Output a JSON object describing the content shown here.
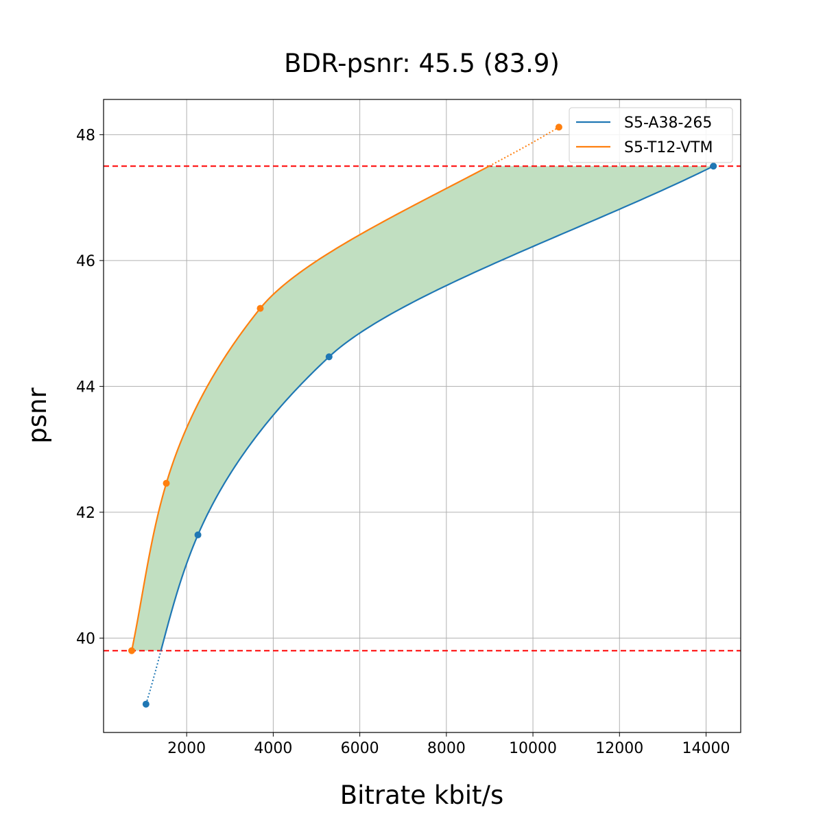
{
  "chart_data": {
    "type": "line",
    "title": "BDR-psnr: 45.5 (83.9)",
    "xlabel": "Bitrate kbit/s",
    "ylabel": "psnr",
    "xlim": [
      80,
      14800
    ],
    "ylim": [
      38.5,
      48.56
    ],
    "xticks": [
      2000,
      4000,
      6000,
      8000,
      10000,
      12000,
      14000
    ],
    "yticks": [
      40,
      42,
      44,
      46,
      48
    ],
    "grid": true,
    "legend_position": "top-right",
    "series": [
      {
        "name": "S5-A38-265",
        "color": "#1f77b4",
        "points": [
          [
            1060,
            38.95
          ],
          [
            2260,
            41.64
          ],
          [
            5290,
            44.47
          ],
          [
            14170,
            47.5
          ]
        ]
      },
      {
        "name": "S5-T12-VTM",
        "color": "#ff7f0e",
        "points": [
          [
            730,
            39.8
          ],
          [
            1530,
            42.46
          ],
          [
            3700,
            45.24
          ],
          [
            10600,
            48.12
          ]
        ]
      }
    ],
    "reference_lines": {
      "color": "#ff0000",
      "style": "dashed",
      "y": [
        39.8,
        47.5
      ]
    },
    "fill_between": {
      "color": "#c1dfc1",
      "y_range": [
        39.8,
        47.5
      ]
    }
  }
}
